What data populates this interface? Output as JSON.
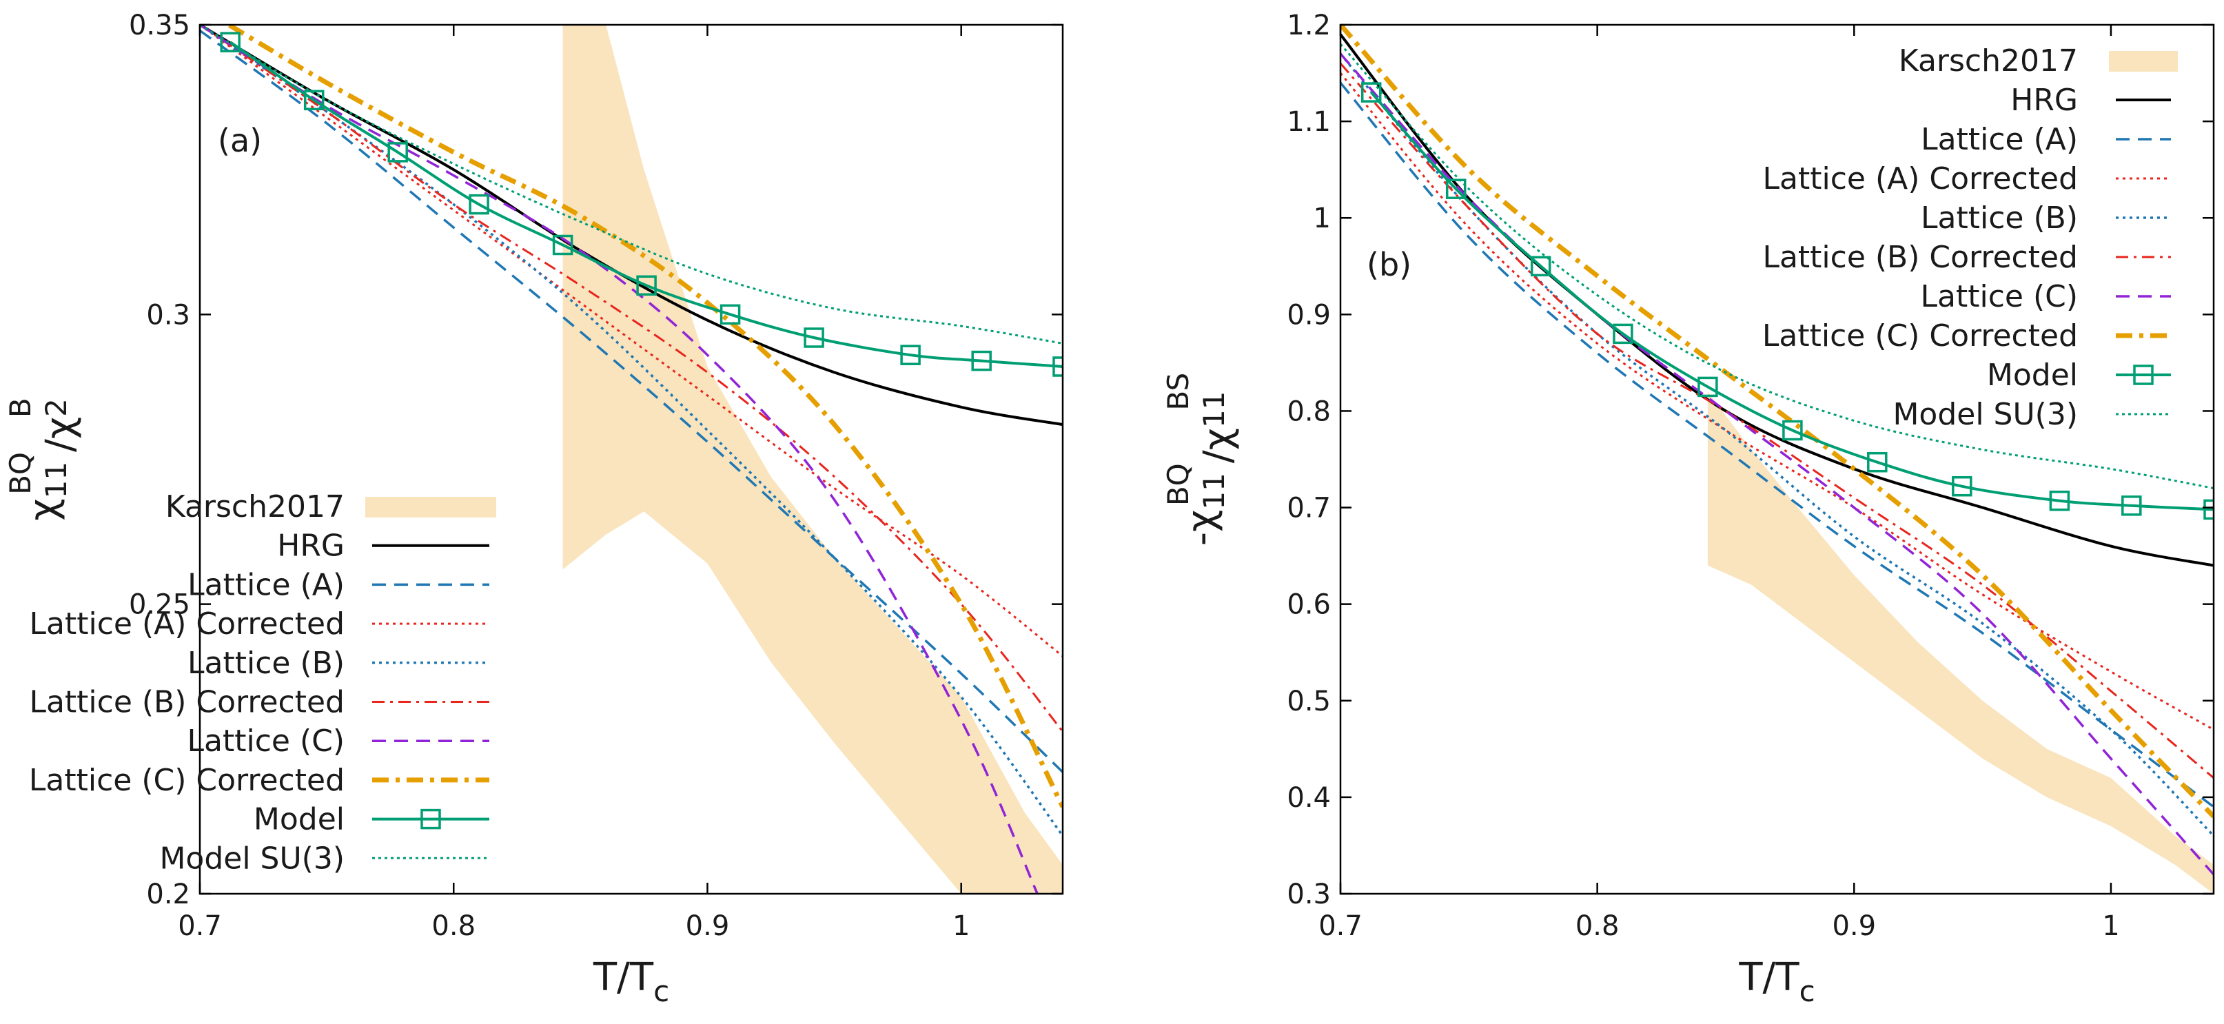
{
  "colors": {
    "band": "#f9e4bd",
    "hrg": "#000000",
    "latA": "#1f77b4",
    "latAc": "#e8261e",
    "latB": "#1f77b4",
    "latBc": "#e8261e",
    "latC": "#9124d6",
    "latCc": "#e69f00",
    "model": "#009e73",
    "modelsu3": "#009e73"
  },
  "chart_data": [
    {
      "type": "line",
      "panel_label": "(a)",
      "xlabel": "T/T",
      "xlabel_sub": "c",
      "ylabel_base": "χ",
      "ylabel_sub1": "11",
      "ylabel_sup1": "BQ",
      "ylabel_slash": "/χ",
      "ylabel_sub2": "2",
      "ylabel_sup2": "B",
      "xlim": [
        0.7,
        1.04
      ],
      "ylim": [
        0.2,
        0.35
      ],
      "x_ticks": [
        0.7,
        0.8,
        0.9,
        1.0
      ],
      "x_tick_labels": [
        "0.7",
        "0.8",
        "0.9",
        "1"
      ],
      "y_ticks": [
        0.2,
        0.25,
        0.3,
        0.35
      ],
      "y_tick_labels": [
        "0.2",
        "0.25",
        "0.3",
        "0.35"
      ],
      "legend_position": "bottom-left",
      "legend": [
        "Karsch2017",
        "HRG",
        "Lattice (A)",
        "Lattice (A) Corrected",
        "Lattice (B)",
        "Lattice (B) Corrected",
        "Lattice (C)",
        "Lattice (C) Corrected",
        "Model",
        "Model SU(3)"
      ],
      "band": {
        "name": "Karsch2017",
        "x": [
          0.843,
          0.86,
          0.875,
          0.9,
          0.925,
          0.95,
          0.975,
          1.0,
          1.025,
          1.04
        ],
        "upper": [
          0.35,
          0.35,
          0.325,
          0.291,
          0.272,
          0.258,
          0.246,
          0.234,
          0.214,
          0.205
        ],
        "lower": [
          0.256,
          0.262,
          0.266,
          0.257,
          0.24,
          0.226,
          0.213,
          0.2,
          0.2,
          0.2
        ]
      },
      "series": [
        {
          "name": "HRG",
          "x": [
            0.7,
            0.75,
            0.8,
            0.85,
            0.9,
            0.95,
            1.0,
            1.04
          ],
          "values": [
            0.35,
            0.337,
            0.325,
            0.311,
            0.299,
            0.29,
            0.284,
            0.281
          ]
        },
        {
          "name": "Lattice (A)",
          "x": [
            0.7,
            0.75,
            0.8,
            0.85,
            0.9,
            0.95,
            1.0,
            1.04
          ],
          "values": [
            0.349,
            0.333,
            0.315,
            0.297,
            0.278,
            0.258,
            0.238,
            0.221
          ]
        },
        {
          "name": "Lattice (A) Corrected",
          "x": [
            0.7,
            0.75,
            0.8,
            0.85,
            0.9,
            0.95,
            1.0,
            1.04
          ],
          "values": [
            0.35,
            0.334,
            0.318,
            0.302,
            0.286,
            0.27,
            0.255,
            0.241
          ]
        },
        {
          "name": "Lattice (B)",
          "x": [
            0.7,
            0.75,
            0.8,
            0.85,
            0.9,
            0.95,
            1.0,
            1.04
          ],
          "values": [
            0.35,
            0.335,
            0.319,
            0.301,
            0.28,
            0.258,
            0.234,
            0.21
          ]
        },
        {
          "name": "Lattice (B) Corrected",
          "x": [
            0.7,
            0.75,
            0.8,
            0.85,
            0.9,
            0.95,
            1.0,
            1.04
          ],
          "values": [
            0.35,
            0.335,
            0.319,
            0.305,
            0.29,
            0.272,
            0.25,
            0.228
          ]
        },
        {
          "name": "Lattice (C)",
          "x": [
            0.7,
            0.75,
            0.8,
            0.85,
            0.9,
            0.95,
            1.0,
            1.03
          ],
          "values": [
            0.35,
            0.336,
            0.324,
            0.311,
            0.293,
            0.268,
            0.23,
            0.2
          ]
        },
        {
          "name": "Lattice (C) Corrected",
          "x": [
            0.7,
            0.75,
            0.8,
            0.85,
            0.9,
            0.95,
            1.0,
            1.04
          ],
          "values": [
            0.353,
            0.34,
            0.328,
            0.317,
            0.302,
            0.281,
            0.25,
            0.215
          ]
        },
        {
          "name": "Model",
          "x": [
            0.712,
            0.745,
            0.778,
            0.81,
            0.843,
            0.876,
            0.909,
            0.942,
            0.98,
            1.008,
            1.04
          ],
          "values": [
            0.347,
            0.337,
            0.328,
            0.319,
            0.312,
            0.305,
            0.3,
            0.296,
            0.293,
            0.292,
            0.291
          ]
        },
        {
          "name": "Model SU(3)",
          "x": [
            0.7,
            0.75,
            0.8,
            0.85,
            0.9,
            0.95,
            1.0,
            1.04
          ],
          "values": [
            0.35,
            0.337,
            0.326,
            0.316,
            0.307,
            0.301,
            0.298,
            0.295
          ]
        }
      ]
    },
    {
      "type": "line",
      "panel_label": "(b)",
      "xlabel": "T/T",
      "xlabel_sub": "c",
      "ylabel_base": "-χ",
      "ylabel_sub1": "11",
      "ylabel_sup1": "BQ",
      "ylabel_slash": "/χ",
      "ylabel_sub2": "11",
      "ylabel_sup2": "BS",
      "xlim": [
        0.7,
        1.04
      ],
      "ylim": [
        0.3,
        1.2
      ],
      "x_ticks": [
        0.7,
        0.8,
        0.9,
        1.0
      ],
      "x_tick_labels": [
        "0.7",
        "0.8",
        "0.9",
        "1"
      ],
      "y_ticks": [
        0.3,
        0.4,
        0.5,
        0.6,
        0.7,
        0.8,
        0.9,
        1.0,
        1.1,
        1.2
      ],
      "y_tick_labels": [
        "0.3",
        "0.4",
        "0.5",
        "0.6",
        "0.7",
        "0.8",
        "0.9",
        "1",
        "1.1",
        "1.2"
      ],
      "legend_position": "top-right",
      "legend": [
        "Karsch2017",
        "HRG",
        "Lattice (A)",
        "Lattice (A) Corrected",
        "Lattice (B)",
        "Lattice (B) Corrected",
        "Lattice (C)",
        "Lattice (C) Corrected",
        "Model",
        "Model SU(3)"
      ],
      "band": {
        "name": "Karsch2017",
        "x": [
          0.843,
          0.86,
          0.875,
          0.9,
          0.925,
          0.95,
          0.975,
          1.0,
          1.025,
          1.04
        ],
        "upper": [
          0.82,
          0.76,
          0.71,
          0.63,
          0.56,
          0.5,
          0.45,
          0.42,
          0.36,
          0.33
        ],
        "lower": [
          0.64,
          0.62,
          0.59,
          0.54,
          0.49,
          0.44,
          0.4,
          0.37,
          0.33,
          0.3
        ]
      },
      "series": [
        {
          "name": "HRG",
          "x": [
            0.7,
            0.75,
            0.8,
            0.85,
            0.9,
            0.95,
            1.0,
            1.04
          ],
          "values": [
            1.19,
            1.02,
            0.9,
            0.8,
            0.74,
            0.7,
            0.66,
            0.64
          ]
        },
        {
          "name": "Lattice (A)",
          "x": [
            0.7,
            0.75,
            0.8,
            0.85,
            0.9,
            0.95,
            1.0,
            1.04
          ],
          "values": [
            1.14,
            0.98,
            0.86,
            0.76,
            0.66,
            0.57,
            0.47,
            0.39
          ]
        },
        {
          "name": "Lattice (A) Corrected",
          "x": [
            0.7,
            0.75,
            0.8,
            0.85,
            0.9,
            0.95,
            1.0,
            1.04
          ],
          "values": [
            1.15,
            0.99,
            0.87,
            0.78,
            0.7,
            0.61,
            0.53,
            0.47
          ]
        },
        {
          "name": "Lattice (B)",
          "x": [
            0.7,
            0.75,
            0.8,
            0.85,
            0.9,
            0.95,
            1.0,
            1.04
          ],
          "values": [
            1.17,
            1.01,
            0.88,
            0.78,
            0.67,
            0.58,
            0.47,
            0.36
          ]
        },
        {
          "name": "Lattice (B) Corrected",
          "x": [
            0.7,
            0.75,
            0.8,
            0.85,
            0.9,
            0.95,
            1.0,
            1.04
          ],
          "values": [
            1.16,
            1.01,
            0.88,
            0.8,
            0.71,
            0.62,
            0.51,
            0.42
          ]
        },
        {
          "name": "Lattice (C)",
          "x": [
            0.7,
            0.75,
            0.8,
            0.85,
            0.9,
            0.95,
            1.0,
            1.04
          ],
          "values": [
            1.17,
            1.02,
            0.9,
            0.8,
            0.7,
            0.59,
            0.44,
            0.32
          ]
        },
        {
          "name": "Lattice (C) Corrected",
          "x": [
            0.7,
            0.75,
            0.8,
            0.85,
            0.9,
            0.95,
            1.0,
            1.04
          ],
          "values": [
            1.2,
            1.05,
            0.94,
            0.84,
            0.74,
            0.63,
            0.49,
            0.38
          ]
        },
        {
          "name": "Model",
          "x": [
            0.712,
            0.745,
            0.778,
            0.81,
            0.843,
            0.876,
            0.909,
            0.942,
            0.98,
            1.008,
            1.04
          ],
          "values": [
            1.13,
            1.03,
            0.95,
            0.88,
            0.825,
            0.78,
            0.747,
            0.722,
            0.707,
            0.702,
            0.698
          ]
        },
        {
          "name": "Model SU(3)",
          "x": [
            0.7,
            0.75,
            0.8,
            0.85,
            0.9,
            0.95,
            1.0,
            1.04
          ],
          "values": [
            1.18,
            1.03,
            0.92,
            0.84,
            0.79,
            0.76,
            0.74,
            0.72
          ]
        }
      ]
    }
  ]
}
